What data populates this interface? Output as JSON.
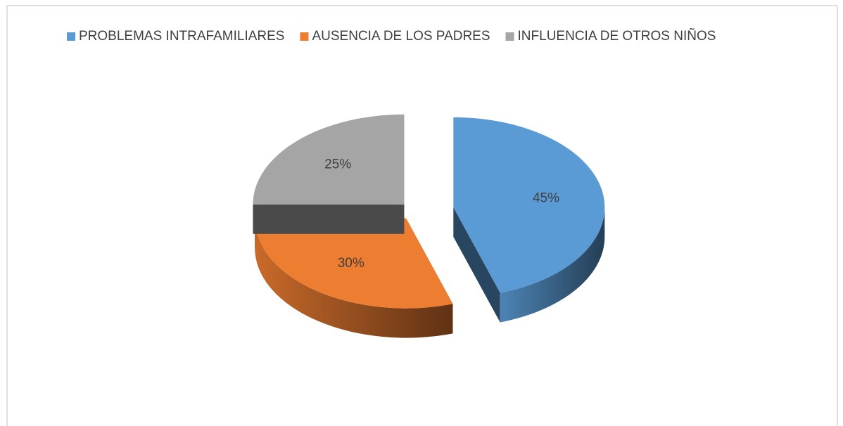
{
  "chart_data": {
    "type": "pie",
    "categories": [
      "PROBLEMAS INTRAFAMILIARES",
      "AUSENCIA DE LOS PADRES",
      "INFLUENCIA DE OTROS NIÑOS"
    ],
    "values": [
      45,
      30,
      25
    ],
    "value_labels": [
      "45%",
      "30%",
      "25%"
    ],
    "colors": [
      "#5b9bd5",
      "#ed7d31",
      "#a5a5a5"
    ],
    "legend": "top"
  }
}
